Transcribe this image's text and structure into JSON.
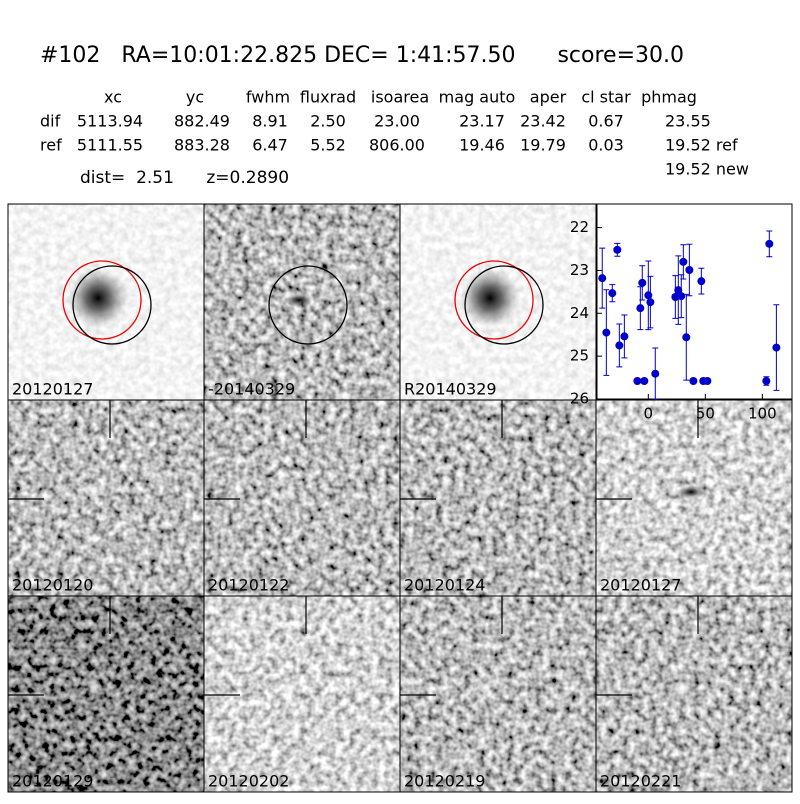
{
  "header": {
    "title": "#102   RA=10:01:22.825 DEC= 1:41:57.50      score=30.0",
    "dist": "dist=  2.51      z=0.2890"
  },
  "table": {
    "columns": [
      "xc",
      "yc",
      "fwhm",
      "fluxrad",
      "isoarea",
      "mag auto",
      "aper",
      "cl star",
      "phmag"
    ],
    "rows": [
      [
        "dif",
        "5113.94",
        "882.49",
        "8.91",
        "2.50",
        "23.00",
        "23.17",
        "23.42",
        "0.67",
        "23.55"
      ],
      [
        "ref",
        "5111.55",
        "883.28",
        "6.47",
        "5.52",
        "806.00",
        "19.46",
        "19.79",
        "0.03",
        "19.52 ref"
      ]
    ],
    "extra": "19.52 new"
  },
  "stamps": [
    "20120127",
    "-20140329",
    "R20140329",
    null,
    "20120120",
    "20120122",
    "20120124",
    "20120127",
    "20120129",
    "20120202",
    "20120219",
    "20120221"
  ],
  "chart_data": {
    "type": "errorbar",
    "color": "#0000cc",
    "x": [
      -40.4,
      -36.8,
      -31.6,
      -27.2,
      -25.4,
      -21,
      -9.6,
      -7,
      -5.3,
      -3.5,
      0,
      1.8,
      6.1,
      23.7,
      26.3,
      28.9,
      30.7,
      33.3,
      36,
      39.5,
      46.5,
      48.2,
      51.8,
      103.5,
      106.1,
      112.3
    ],
    "values": [
      23.18,
      24.45,
      23.53,
      22.52,
      24.75,
      24.54,
      25.58,
      23.88,
      23.29,
      25.58,
      23.58,
      23.74,
      25.41,
      23.62,
      23.46,
      23.6,
      22.8,
      24.56,
      22.99,
      25.58,
      23.25,
      25.58,
      25.58,
      25.58,
      22.38,
      24.8
    ],
    "errors": [
      0.7,
      1.0,
      0.2,
      0.15,
      0.5,
      0.5,
      0.05,
      0.5,
      0.4,
      0.05,
      0.8,
      0.6,
      0.6,
      0.5,
      0.8,
      0.5,
      0.4,
      1.0,
      0.6,
      0.05,
      0.3,
      0.05,
      0.05,
      0.1,
      0.3,
      1.0
    ],
    "xlim": [
      -45,
      126
    ],
    "xticks": [
      0,
      50,
      100
    ],
    "ylim": [
      26,
      21.45
    ],
    "yticks": [
      22,
      23,
      24,
      25,
      26
    ]
  }
}
